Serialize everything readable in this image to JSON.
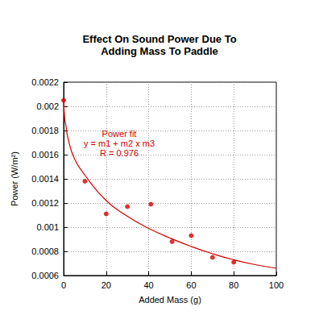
{
  "chart_data": {
    "type": "scatter",
    "title": "Effect On Sound Power Due To\nAdding Mass To Paddle",
    "x_label": "Added Mass (g)",
    "y_label": "Power (W/m²)",
    "annotations": [
      "Power fit",
      "y = m1 + m2 x m3",
      "R = 0.976"
    ],
    "series": [
      {
        "type": "scatter",
        "color": "#d40000",
        "marker": "circle",
        "x": [
          0,
          10,
          20,
          30,
          41,
          51,
          60,
          70,
          80
        ],
        "values": [
          0.00205,
          0.00138,
          0.00111,
          0.00117,
          0.00119,
          0.00088,
          0.00093,
          0.00075,
          0.00071
        ]
      },
      {
        "type": "line",
        "color": "#d40000",
        "marker": "none",
        "line_style": "solid",
        "x": [
          0,
          0.5,
          1,
          2,
          5,
          10,
          20,
          30,
          40,
          50,
          60,
          70,
          80,
          90,
          100
        ],
        "values": [
          0.00205,
          0.0019,
          0.00185,
          0.00174,
          0.00157,
          0.00143,
          0.00122,
          0.00109,
          0.00099,
          0.00091,
          0.00084,
          0.00078,
          0.00073,
          0.00069,
          0.00066
        ]
      }
    ],
    "xlim": [
      0,
      100
    ],
    "xticks": [
      0,
      20,
      40,
      60,
      80,
      100
    ],
    "ylim": [
      0.0006,
      0.0022
    ],
    "yticks": [
      0.0006,
      0.0008,
      0.001,
      0.0012,
      0.0014,
      0.0016,
      0.0018,
      0.002,
      0.0022
    ],
    "grid": true
  }
}
